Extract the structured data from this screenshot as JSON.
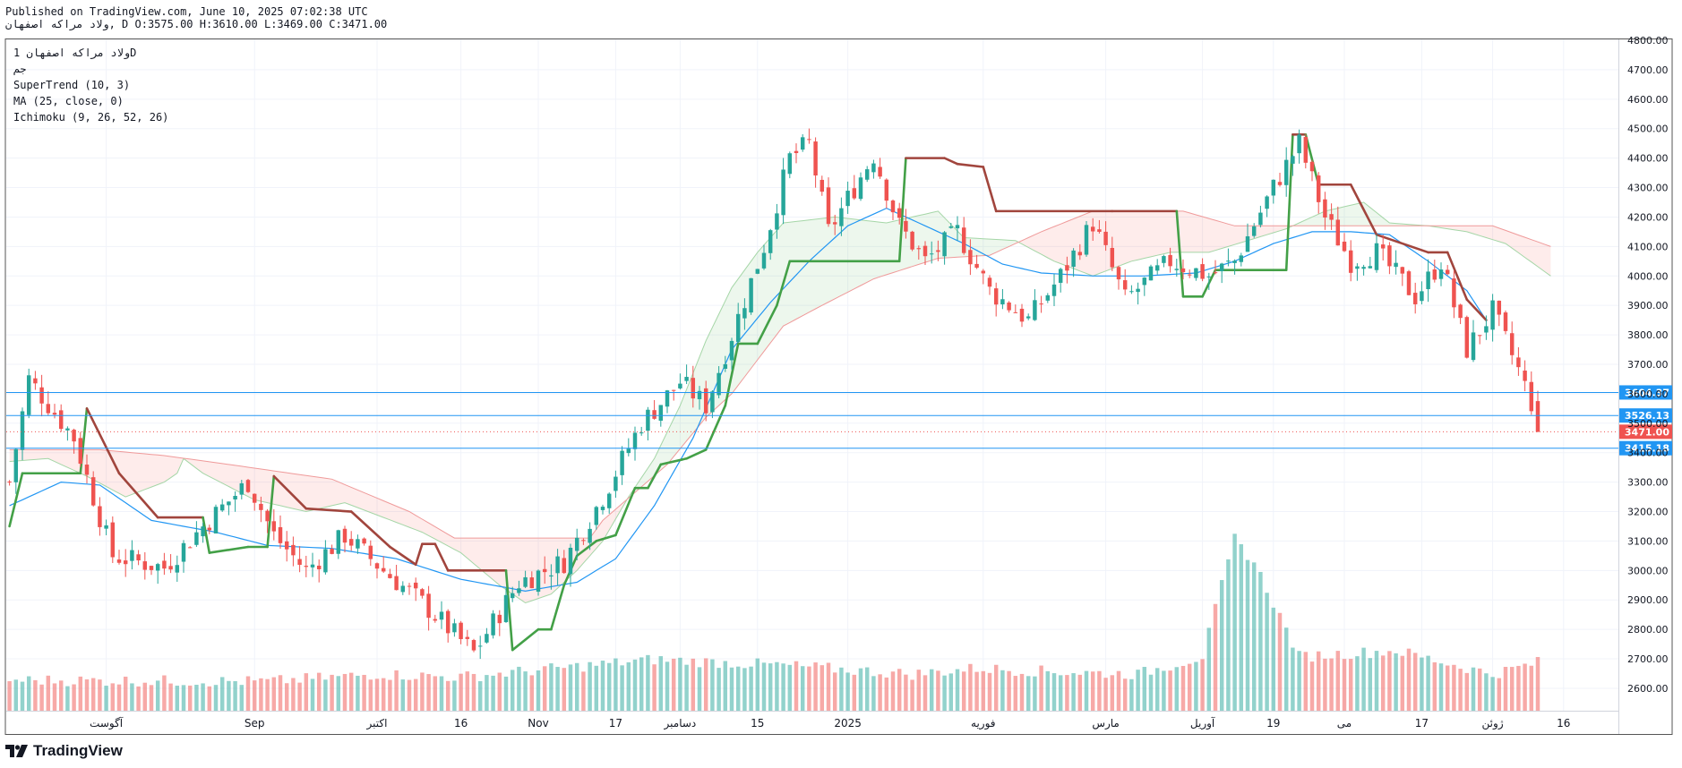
{
  "header": {
    "published": "Published on TradingView.com, June 10, 2025 07:02:38 UTC",
    "symbol_line": "ولاد مراکه اصفهان, D O:3575.00 H:3610.00 L:3469.00 C:3471.00"
  },
  "legend": {
    "line1": "ولاد مراکه اصفهان 1D",
    "line2": "جم",
    "line3": "SuperTrend (10, 3)",
    "line4": "MA (25, close, 0)",
    "line5": "Ichimoku (9, 26, 52, 26)"
  },
  "brand": {
    "name": "TradingView"
  },
  "colors": {
    "up": "#26a69a",
    "down": "#ef5350",
    "supertrend_up": "#43a047",
    "supertrend_down": "#a1453d",
    "ma": "#2196f3",
    "hline": "#2196f3"
  },
  "chart_data": {
    "type": "candlestick",
    "title": "ولاد مراکه اصفهان 1D",
    "ylim": [
      2530,
      4800
    ],
    "y_ticks": [
      2600,
      2700,
      2800,
      2900,
      3000,
      3100,
      3200,
      3300,
      3400,
      3500,
      3600,
      3700,
      3800,
      3900,
      4000,
      4100,
      4200,
      4300,
      4400,
      4500,
      4600,
      4700,
      4800
    ],
    "x_labels": [
      "آگوست",
      "Sep",
      "اکتبر",
      "16",
      "Nov",
      "17",
      "دسامبر",
      "15",
      "2025",
      "فوریه",
      "مارس",
      "آوریل",
      "19",
      "می",
      "17",
      "ژوئن",
      "16"
    ],
    "x_label_bar_index": [
      15,
      38,
      57,
      70,
      82,
      94,
      104,
      116,
      130,
      151,
      170,
      185,
      196,
      207,
      219,
      230,
      241
    ],
    "n_slots": 250,
    "horizontal_lines": [
      {
        "price": 3604.37,
        "label": "3604.37"
      },
      {
        "price": 3526.13,
        "label": "3526.13"
      },
      {
        "price": 3415.18,
        "label": "3415.18"
      }
    ],
    "last_price": {
      "price": 3471.0,
      "label": "3471.00"
    },
    "ohlc": {
      "open": 3575.0,
      "high": 3610.0,
      "low": 3469.0,
      "close": 3471.0
    },
    "price_anchors": [
      [
        0,
        3300
      ],
      [
        3,
        3650
      ],
      [
        10,
        3450
      ],
      [
        16,
        3050
      ],
      [
        24,
        3010
      ],
      [
        30,
        3150
      ],
      [
        37,
        3300
      ],
      [
        41,
        3120
      ],
      [
        46,
        3000
      ],
      [
        52,
        3120
      ],
      [
        58,
        3000
      ],
      [
        64,
        2890
      ],
      [
        72,
        2720
      ],
      [
        79,
        2960
      ],
      [
        86,
        3030
      ],
      [
        92,
        3250
      ],
      [
        98,
        3500
      ],
      [
        104,
        3640
      ],
      [
        108,
        3560
      ],
      [
        112,
        3800
      ],
      [
        117,
        4100
      ],
      [
        121,
        4400
      ],
      [
        124,
        4450
      ],
      [
        127,
        4150
      ],
      [
        131,
        4300
      ],
      [
        134,
        4410
      ],
      [
        138,
        4170
      ],
      [
        142,
        4050
      ],
      [
        147,
        4150
      ],
      [
        152,
        3950
      ],
      [
        158,
        3850
      ],
      [
        163,
        4000
      ],
      [
        168,
        4180
      ],
      [
        173,
        3920
      ],
      [
        180,
        4050
      ],
      [
        186,
        4000
      ],
      [
        190,
        4050
      ],
      [
        196,
        4300
      ],
      [
        200,
        4450
      ],
      [
        204,
        4200
      ],
      [
        208,
        4050
      ],
      [
        212,
        4080
      ],
      [
        218,
        3930
      ],
      [
        222,
        4050
      ],
      [
        226,
        3750
      ],
      [
        230,
        3880
      ],
      [
        234,
        3680
      ],
      [
        236,
        3570
      ],
      [
        237,
        3471
      ]
    ],
    "volume_anchors": [
      [
        0,
        2620
      ],
      [
        40,
        2615
      ],
      [
        57,
        2640
      ],
      [
        70,
        2630
      ],
      [
        85,
        2660
      ],
      [
        100,
        2690
      ],
      [
        110,
        2680
      ],
      [
        120,
        2670
      ],
      [
        140,
        2640
      ],
      [
        150,
        2660
      ],
      [
        160,
        2650
      ],
      [
        175,
        2640
      ],
      [
        185,
        2700
      ],
      [
        190,
        3100
      ],
      [
        193,
        3020
      ],
      [
        200,
        2700
      ],
      [
        215,
        2720
      ],
      [
        230,
        2640
      ],
      [
        237,
        2680
      ]
    ],
    "supertrend_anchors": [
      [
        0,
        3150
      ],
      [
        2,
        3330
      ],
      [
        11,
        3330
      ],
      [
        12,
        3550
      ],
      [
        17,
        3330
      ],
      [
        23,
        3180
      ],
      [
        30,
        3180
      ],
      [
        31,
        3060
      ],
      [
        37,
        3080
      ],
      [
        40,
        3080
      ],
      [
        41,
        3320
      ],
      [
        46,
        3210
      ],
      [
        53,
        3200
      ],
      [
        59,
        3080
      ],
      [
        63,
        3020
      ],
      [
        64,
        3090
      ],
      [
        66,
        3090
      ],
      [
        68,
        3000
      ],
      [
        77,
        3000
      ],
      [
        78,
        2730
      ],
      [
        82,
        2800
      ],
      [
        84,
        2800
      ],
      [
        86,
        2950
      ],
      [
        88,
        3050
      ],
      [
        91,
        3100
      ],
      [
        94,
        3120
      ],
      [
        97,
        3280
      ],
      [
        99,
        3280
      ],
      [
        101,
        3360
      ],
      [
        105,
        3380
      ],
      [
        108,
        3410
      ],
      [
        111,
        3560
      ],
      [
        113,
        3770
      ],
      [
        116,
        3770
      ],
      [
        119,
        3900
      ],
      [
        121,
        4050
      ],
      [
        130,
        4050
      ],
      [
        138,
        4050
      ],
      [
        139,
        4400
      ],
      [
        145,
        4400
      ],
      [
        147,
        4380
      ],
      [
        151,
        4370
      ],
      [
        153,
        4220
      ],
      [
        171,
        4220
      ],
      [
        181,
        4220
      ],
      [
        182,
        3930
      ],
      [
        185,
        3930
      ],
      [
        187,
        4020
      ],
      [
        198,
        4020
      ],
      [
        199,
        4480
      ],
      [
        201,
        4480
      ],
      [
        203,
        4310
      ],
      [
        208,
        4310
      ],
      [
        212,
        4140
      ],
      [
        220,
        4080
      ],
      [
        223,
        4080
      ],
      [
        226,
        3920
      ],
      [
        229,
        3850
      ]
    ],
    "ma_anchors": [
      [
        0,
        3220
      ],
      [
        8,
        3300
      ],
      [
        14,
        3290
      ],
      [
        22,
        3170
      ],
      [
        32,
        3130
      ],
      [
        40,
        3085
      ],
      [
        50,
        3075
      ],
      [
        60,
        3040
      ],
      [
        70,
        2970
      ],
      [
        80,
        2930
      ],
      [
        88,
        2960
      ],
      [
        94,
        3040
      ],
      [
        100,
        3220
      ],
      [
        106,
        3450
      ],
      [
        112,
        3750
      ],
      [
        118,
        3910
      ],
      [
        124,
        4050
      ],
      [
        130,
        4170
      ],
      [
        136,
        4230
      ],
      [
        142,
        4170
      ],
      [
        148,
        4110
      ],
      [
        154,
        4040
      ],
      [
        160,
        4010
      ],
      [
        168,
        4000
      ],
      [
        176,
        4000
      ],
      [
        184,
        4010
      ],
      [
        190,
        4050
      ],
      [
        196,
        4110
      ],
      [
        202,
        4150
      ],
      [
        208,
        4150
      ],
      [
        214,
        4140
      ],
      [
        220,
        4050
      ],
      [
        226,
        3950
      ],
      [
        229,
        3850
      ]
    ],
    "senkou_a_anchors": [
      [
        0,
        3370
      ],
      [
        6,
        3380
      ],
      [
        12,
        3320
      ],
      [
        18,
        3250
      ],
      [
        24,
        3300
      ],
      [
        26,
        3330
      ],
      [
        27,
        3380
      ],
      [
        30,
        3330
      ],
      [
        38,
        3240
      ],
      [
        46,
        3200
      ],
      [
        52,
        3230
      ],
      [
        58,
        3180
      ],
      [
        64,
        3130
      ],
      [
        70,
        3060
      ],
      [
        76,
        2950
      ],
      [
        80,
        2890
      ],
      [
        84,
        2920
      ],
      [
        88,
        3000
      ],
      [
        92,
        3100
      ],
      [
        96,
        3250
      ],
      [
        100,
        3380
      ],
      [
        104,
        3560
      ],
      [
        108,
        3780
      ],
      [
        112,
        3960
      ],
      [
        116,
        4080
      ],
      [
        120,
        4180
      ],
      [
        128,
        4200
      ],
      [
        136,
        4180
      ],
      [
        144,
        4220
      ],
      [
        148,
        4130
      ],
      [
        156,
        4120
      ],
      [
        162,
        4050
      ],
      [
        168,
        4000
      ],
      [
        174,
        4050
      ],
      [
        180,
        4080
      ],
      [
        186,
        4080
      ],
      [
        192,
        4120
      ],
      [
        198,
        4160
      ],
      [
        204,
        4220
      ],
      [
        210,
        4250
      ],
      [
        214,
        4180
      ],
      [
        220,
        4170
      ],
      [
        226,
        4150
      ],
      [
        232,
        4110
      ],
      [
        239,
        4000
      ]
    ],
    "senkou_b_anchors": [
      [
        0,
        3410
      ],
      [
        14,
        3410
      ],
      [
        24,
        3390
      ],
      [
        34,
        3360
      ],
      [
        50,
        3310
      ],
      [
        62,
        3200
      ],
      [
        69,
        3110
      ],
      [
        74,
        3110
      ],
      [
        84,
        3110
      ],
      [
        90,
        3110
      ],
      [
        92,
        3170
      ],
      [
        102,
        3360
      ],
      [
        108,
        3520
      ],
      [
        112,
        3600
      ],
      [
        120,
        3830
      ],
      [
        126,
        3900
      ],
      [
        134,
        3990
      ],
      [
        144,
        4060
      ],
      [
        152,
        4070
      ],
      [
        160,
        4150
      ],
      [
        168,
        4220
      ],
      [
        176,
        4220
      ],
      [
        182,
        4220
      ],
      [
        190,
        4170
      ],
      [
        200,
        4170
      ],
      [
        210,
        4170
      ],
      [
        230,
        4170
      ],
      [
        239,
        4100
      ]
    ],
    "chikou_line_y": 3820
  }
}
